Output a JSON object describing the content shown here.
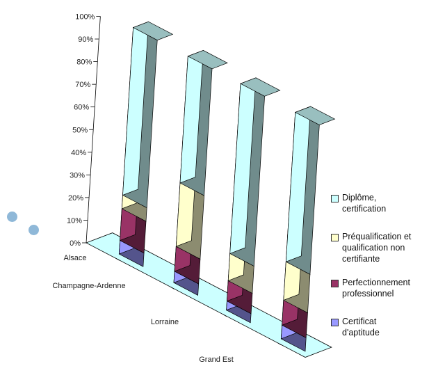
{
  "chart_data": {
    "type": "bar",
    "stacked": true,
    "categories": [
      "Alsace",
      "Champagne-Ardenne",
      "Lorraine",
      "Grand Est"
    ],
    "y_ticks": [
      "0%",
      "10%",
      "20%",
      "30%",
      "40%",
      "50%",
      "60%",
      "70%",
      "80%",
      "90%",
      "100%"
    ],
    "ylim": [
      0,
      100
    ],
    "legend_position": "right",
    "series": [
      {
        "name": "Certificat\nd'aptitude",
        "color": "#9999ff",
        "values": [
          6,
          5,
          4,
          6
        ]
      },
      {
        "name": "Perfectionnement\nprofessionnel",
        "color": "#993366",
        "values": [
          14,
          11,
          9,
          11
        ]
      },
      {
        "name": "Préqualification et\nqualification non\ncertifiante",
        "color": "#ffffcc",
        "values": [
          6,
          28,
          12,
          17
        ]
      },
      {
        "name": "Diplôme,\ncertification",
        "color": "#ccffff",
        "values": [
          74,
          56,
          75,
          66
        ]
      }
    ]
  }
}
